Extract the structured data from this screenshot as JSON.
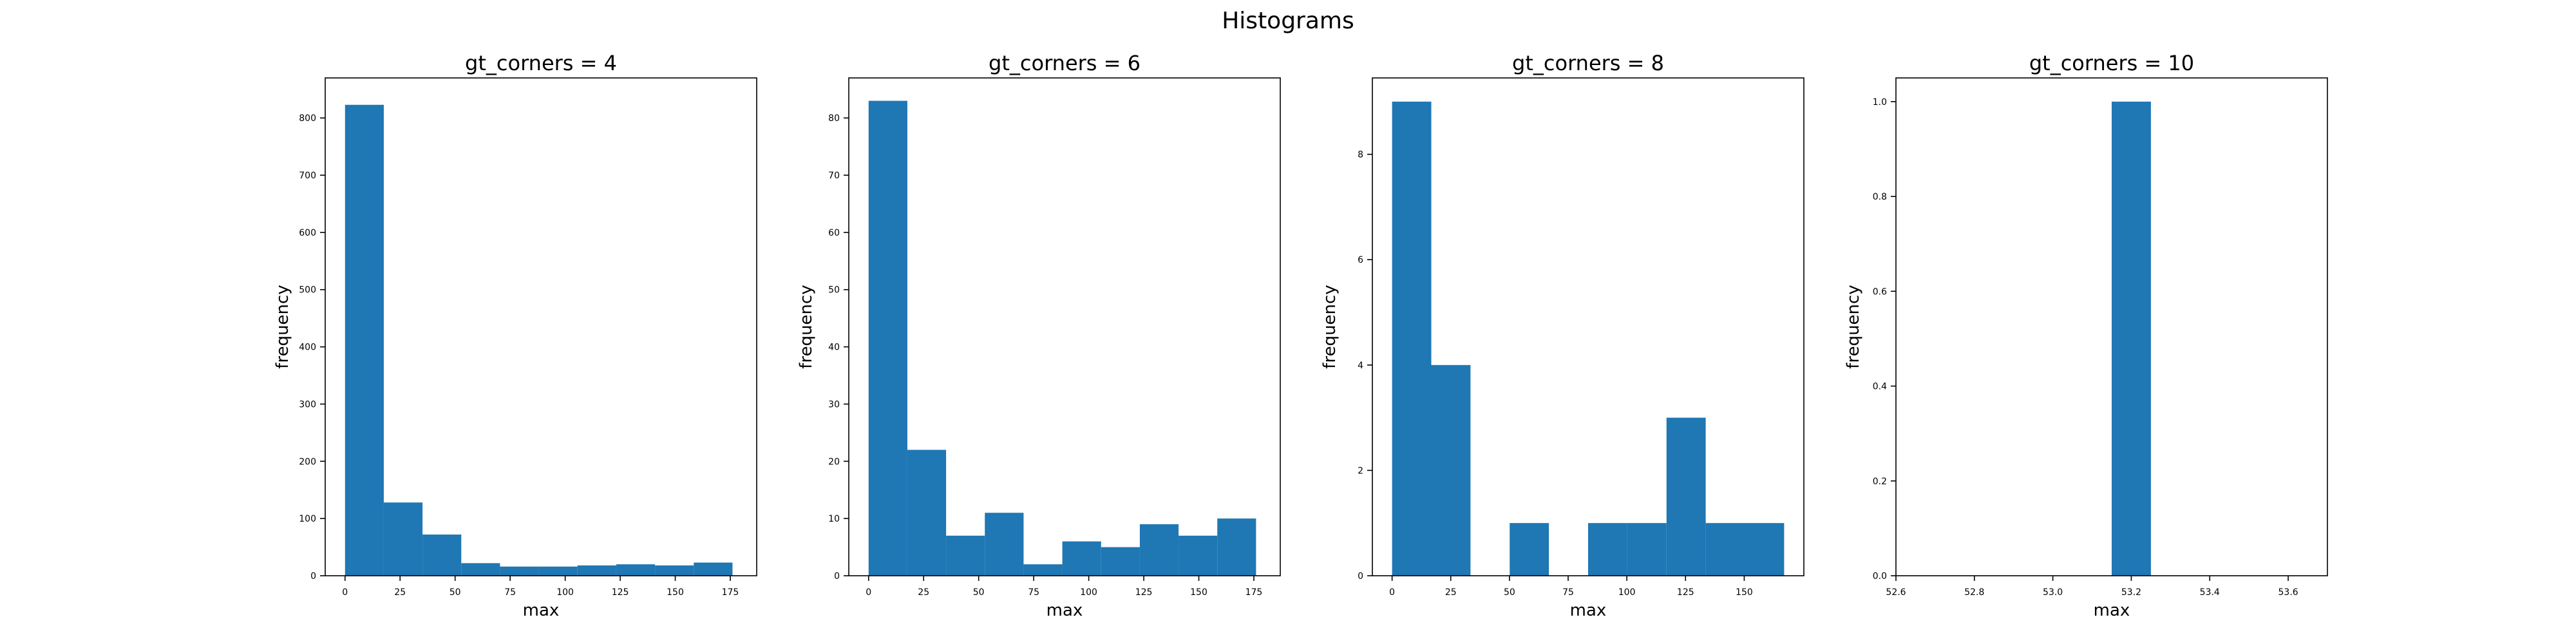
{
  "figure": {
    "title": "Histograms"
  },
  "colors": {
    "bar": "#1f77b4",
    "axis": "#000000"
  },
  "chart_data": [
    {
      "type": "bar",
      "title": "gt_corners = 4",
      "xlabel": "max",
      "ylabel": "frequency",
      "xlim": [
        -9,
        187
      ],
      "ylim": [
        0,
        870
      ],
      "xticks": [
        0,
        25,
        50,
        75,
        100,
        125,
        150,
        175
      ],
      "yticks": [
        0,
        100,
        200,
        300,
        400,
        500,
        600,
        700,
        800
      ],
      "bin_edges": [
        0,
        17.6,
        35.2,
        52.8,
        70.4,
        88,
        105.6,
        123.2,
        140.8,
        158.4,
        176
      ],
      "values": [
        823,
        128,
        72,
        22,
        16,
        16,
        18,
        20,
        18,
        23
      ]
    },
    {
      "type": "bar",
      "title": "gt_corners = 6",
      "xlabel": "max",
      "ylabel": "frequency",
      "xlim": [
        -9,
        187
      ],
      "ylim": [
        0,
        87
      ],
      "xticks": [
        0,
        25,
        50,
        75,
        100,
        125,
        150,
        175
      ],
      "yticks": [
        0,
        10,
        20,
        30,
        40,
        50,
        60,
        70,
        80
      ],
      "bin_edges": [
        0,
        17.6,
        35.2,
        52.8,
        70.4,
        88,
        105.6,
        123.2,
        140.8,
        158.4,
        176
      ],
      "values": [
        83,
        22,
        7,
        11,
        2,
        6,
        5,
        9,
        7,
        10
      ]
    },
    {
      "type": "bar",
      "title": "gt_corners = 8",
      "xlabel": "max",
      "ylabel": "frequency",
      "xlim": [
        -8.4,
        175.4
      ],
      "ylim": [
        0,
        9.45
      ],
      "xticks": [
        0,
        25,
        50,
        75,
        100,
        125,
        150
      ],
      "yticks": [
        0,
        2,
        4,
        6,
        8
      ],
      "bin_edges": [
        0,
        16.7,
        33.4,
        50.1,
        66.8,
        83.5,
        100.2,
        116.9,
        133.6,
        150.3,
        167
      ],
      "values": [
        9,
        4,
        0,
        1,
        0,
        1,
        1,
        3,
        1,
        1
      ]
    },
    {
      "type": "bar",
      "title": "gt_corners = 10",
      "xlabel": "max",
      "ylabel": "frequency",
      "xlim": [
        52.6,
        53.7
      ],
      "ylim": [
        0,
        1.05
      ],
      "xticks": [
        52.6,
        52.8,
        53.0,
        53.2,
        53.4,
        53.6
      ],
      "yticks": [
        0.0,
        0.2,
        0.4,
        0.6,
        0.8,
        1.0
      ],
      "bin_edges": [
        53.15,
        53.25
      ],
      "values": [
        1
      ]
    }
  ]
}
